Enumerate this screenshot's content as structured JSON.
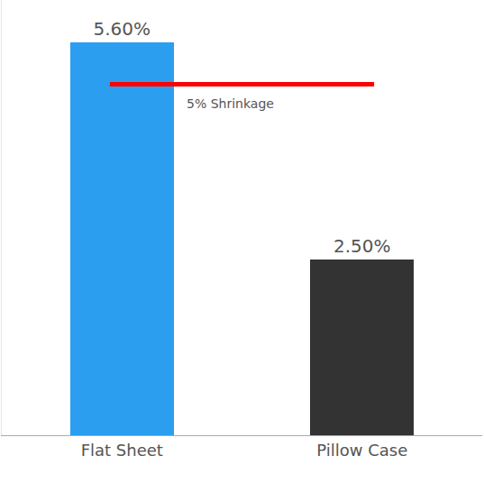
{
  "chart_data": {
    "type": "bar",
    "categories": [
      "Flat Sheet",
      "Pillow Case"
    ],
    "values": [
      5.6,
      2.5
    ],
    "value_labels": [
      "5.60%",
      "2.50%"
    ],
    "colors": [
      "#2b9ef0",
      "#333333"
    ],
    "data_labels": true,
    "tick_labels": "x",
    "ylim": [
      0,
      6.2
    ],
    "grid": false,
    "annotations": [
      {
        "text": "5% Shrinkage",
        "y": 5,
        "color": "#ff0000"
      }
    ]
  }
}
